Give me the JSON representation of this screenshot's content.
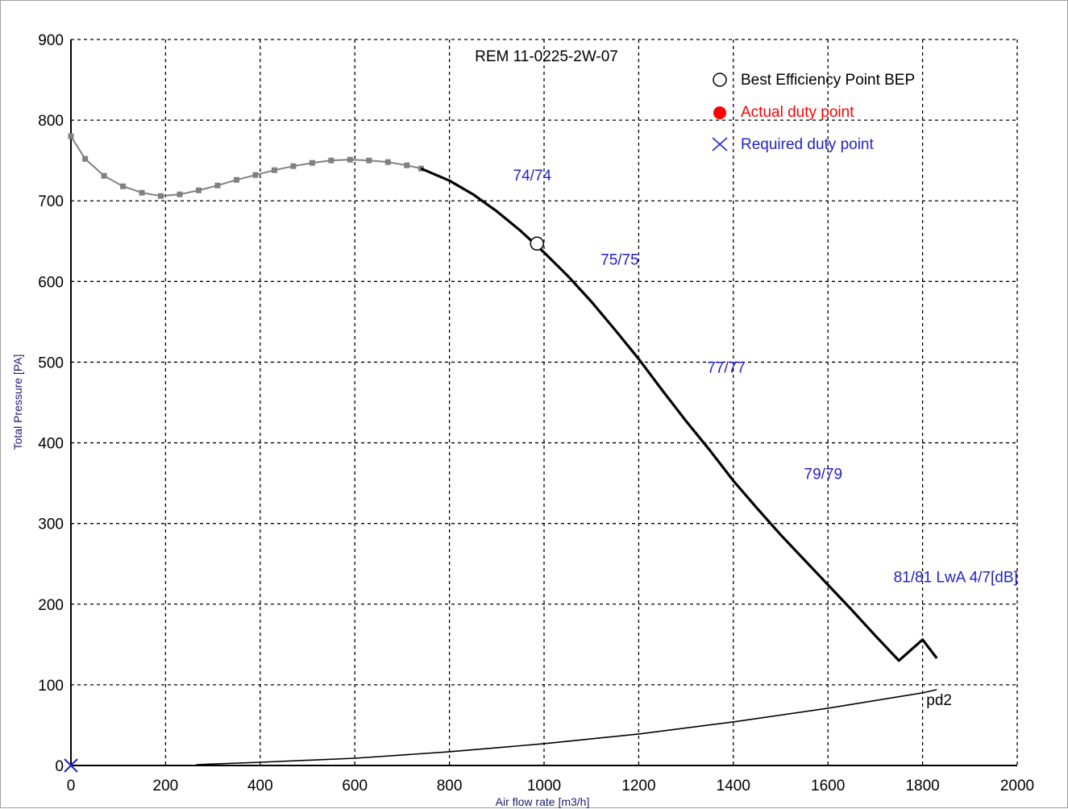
{
  "chart_data": {
    "type": "line",
    "title": "REM 11-0225-2W-07",
    "xlabel": "Air flow rate [m3/h]",
    "ylabel": "Total Pressure [PA]",
    "xlim": [
      0,
      2000
    ],
    "ylim": [
      0,
      900
    ],
    "x_ticks": [
      "0",
      "200",
      "400",
      "600",
      "800",
      "1000",
      "1200",
      "1400",
      "1600",
      "1800",
      "2000"
    ],
    "y_ticks": [
      "0",
      "100",
      "200",
      "300",
      "400",
      "500",
      "600",
      "700",
      "800",
      "900"
    ],
    "grid": true,
    "legend_position": "top-right",
    "legend": [
      {
        "label": "Best Efficiency Point BEP",
        "marker": "open-circle",
        "color": "#000000"
      },
      {
        "label": "Actual duty point",
        "marker": "filled-circle",
        "color": "#ff0000"
      },
      {
        "label": "Required duty point",
        "marker": "cross",
        "color": "#2222cc"
      }
    ],
    "fan_curve_unstable": {
      "x": [
        0,
        30,
        70,
        110,
        150,
        190,
        230,
        270,
        310,
        350,
        390,
        430,
        470,
        510,
        550,
        590,
        630,
        670,
        710,
        740
      ],
      "y": [
        780,
        752,
        731,
        718,
        710,
        706,
        708,
        713,
        719,
        726,
        732,
        738,
        743,
        747,
        750,
        751,
        750,
        748,
        744,
        740
      ]
    },
    "fan_curve_stable": {
      "x": [
        740,
        800,
        850,
        900,
        950,
        1000,
        1050,
        1100,
        1150,
        1200,
        1250,
        1300,
        1350,
        1400,
        1450,
        1500,
        1550,
        1600,
        1650,
        1700,
        1750,
        1800,
        1830
      ],
      "y": [
        740,
        725,
        708,
        687,
        663,
        636,
        607,
        575,
        540,
        504,
        465,
        427,
        391,
        353,
        319,
        286,
        255,
        224,
        193,
        161,
        130,
        156,
        133
      ]
    },
    "dynamic_pressure": {
      "name": "pd2",
      "x": [
        265,
        400,
        600,
        800,
        1000,
        1200,
        1400,
        1600,
        1800,
        1830
      ],
      "y": [
        1,
        4,
        9,
        17,
        27,
        39,
        54,
        71,
        90,
        94
      ]
    },
    "bep_point": {
      "x": 985,
      "y": 647
    },
    "required_duty_point": {
      "x": 0,
      "y": 0
    },
    "noise_labels": [
      {
        "text": "74/74",
        "x": 975,
        "y": 725
      },
      {
        "text": "75/75",
        "x": 1160,
        "y": 621
      },
      {
        "text": "77/77",
        "x": 1385,
        "y": 487
      },
      {
        "text": "79/79",
        "x": 1590,
        "y": 355
      },
      {
        "text": "81/81 LwA 4/7[dB]",
        "x": 1870,
        "y": 227
      }
    ],
    "curve_labels": [
      {
        "text": "pd2",
        "x": 1835,
        "y": 75
      }
    ]
  }
}
